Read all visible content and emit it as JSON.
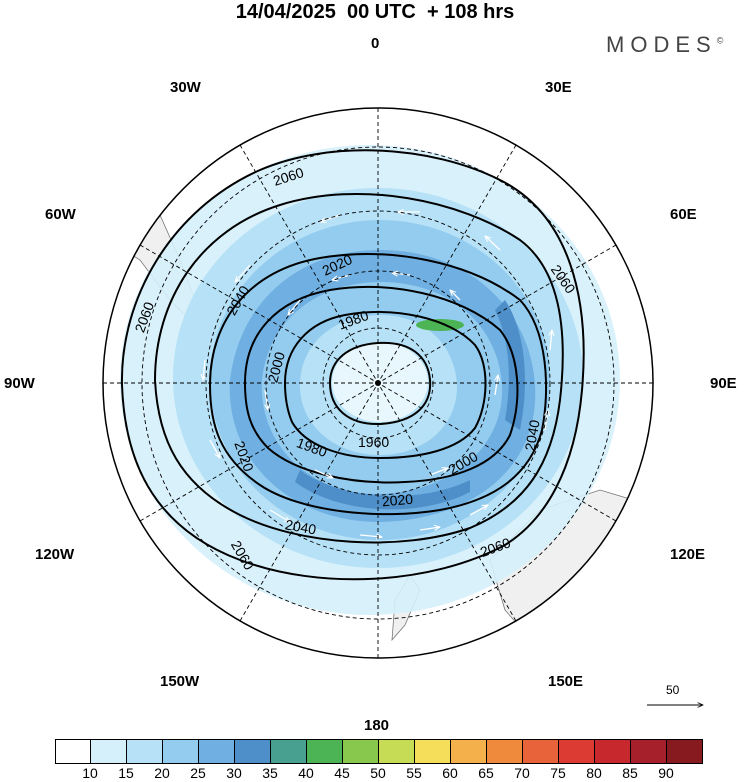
{
  "title": "14/04/2025  00 UTC  + 108 hrs",
  "brand": "MODES",
  "brand_mark": "©",
  "longitude_labels": {
    "lon_0": "0",
    "lon_30e": "30E",
    "lon_60e": "60E",
    "lon_90e": "90E",
    "lon_120e": "120E",
    "lon_150e": "150E",
    "lon_180": "180",
    "lon_150w": "150W",
    "lon_120w": "120W",
    "lon_90w": "90W",
    "lon_60w": "60W",
    "lon_30w": "30W"
  },
  "contour_labels": [
    "1960",
    "1980",
    "2000",
    "2020",
    "2040",
    "2060"
  ],
  "reference_vector": "50",
  "colorbar": {
    "ticks": [
      "10",
      "15",
      "20",
      "25",
      "30",
      "35",
      "40",
      "45",
      "50",
      "55",
      "60",
      "65",
      "70",
      "75",
      "80",
      "85",
      "90"
    ],
    "colors": [
      "#ffffff",
      "#d5f0fb",
      "#b6e1f6",
      "#93ccef",
      "#6fafe1",
      "#4e8fc9",
      "#47a090",
      "#4cb455",
      "#88c84c",
      "#c6dc55",
      "#f5de5a",
      "#f4b04a",
      "#ef8a3c",
      "#e8633a",
      "#dc3b34",
      "#c7282e",
      "#a5202b",
      "#861a1f"
    ]
  },
  "map_data": {
    "projection": "south-polar-stereographic",
    "field": "wind speed (shaded), geopotential height (contours), wind vectors",
    "contour_levels": [
      1960,
      1980,
      2000,
      2020,
      2040,
      2060
    ]
  }
}
